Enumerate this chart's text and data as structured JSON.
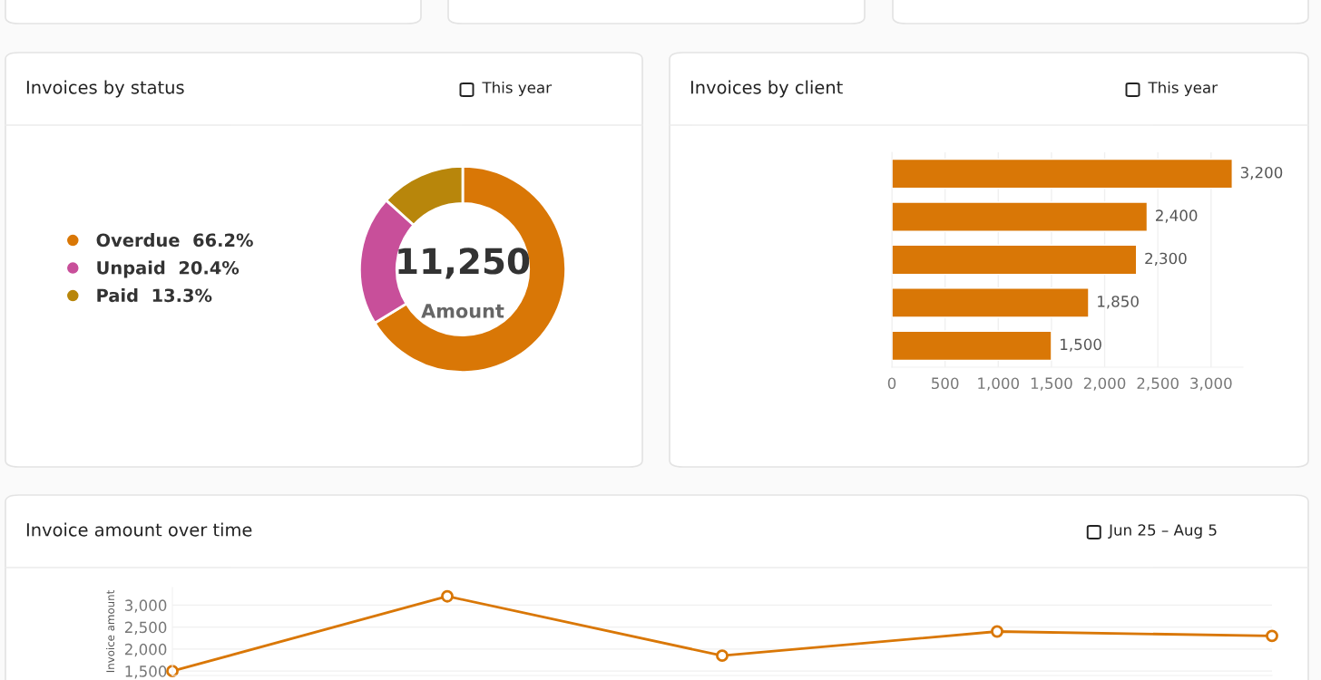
{
  "chart_data": [
    {
      "type": "donut",
      "title": "Invoices by status",
      "categories": [
        "Overdue",
        "Unpaid",
        "Paid"
      ],
      "values": [
        66.2,
        20.4,
        13.3
      ],
      "value_labels": [
        "66.2%",
        "20.4%",
        "13.3%"
      ],
      "colors": [
        "#d97706",
        "#c84f9a",
        "#b8860b"
      ],
      "legend": "left",
      "annotations": [
        "11,250",
        "Amount",
        "This year"
      ]
    },
    {
      "type": "bar",
      "orientation": "horizontal",
      "title": "Invoices by client",
      "categories": [
        null,
        null,
        null,
        null,
        null
      ],
      "values": [
        3200,
        2400,
        2300,
        1850,
        1500
      ],
      "color": "#d97706",
      "xlim": [
        0,
        3300
      ],
      "xticks": [
        0,
        500,
        {
          "value": 1000,
          "label": "1,000"
        },
        {
          "value": 1500,
          "label": "1,500"
        },
        {
          "value": 2000,
          "label": "2,000"
        },
        {
          "value": 2500,
          "label": "2,500"
        },
        {
          "value": 3000,
          "label": "3,000"
        }
      ],
      "grid": "x",
      "value_labels": [
        "3,200",
        "2,400",
        "2,300",
        "1,850",
        "1,500"
      ],
      "annotations": [
        "This year"
      ]
    },
    {
      "type": "line",
      "title": "Invoice amount over time",
      "categories": [
        null,
        null,
        null,
        null,
        null
      ],
      "values": [
        1500,
        3200,
        1850,
        2400,
        2300
      ],
      "color": "#d97706",
      "ylabel": "Invoice amount",
      "ylim": [
        1400,
        3400
      ],
      "yticks": [
        {
          "value": 1500,
          "label": "1,500"
        },
        {
          "value": 2000,
          "label": "2,000"
        },
        {
          "value": 2500,
          "label": "2,500"
        },
        {
          "value": 3000,
          "label": "3,000"
        }
      ],
      "grid": "y",
      "marker": "circle",
      "line_style": "solid",
      "tick_labels": "y",
      "annotations": [
        "Jun 25 – Aug 5"
      ]
    }
  ]
}
